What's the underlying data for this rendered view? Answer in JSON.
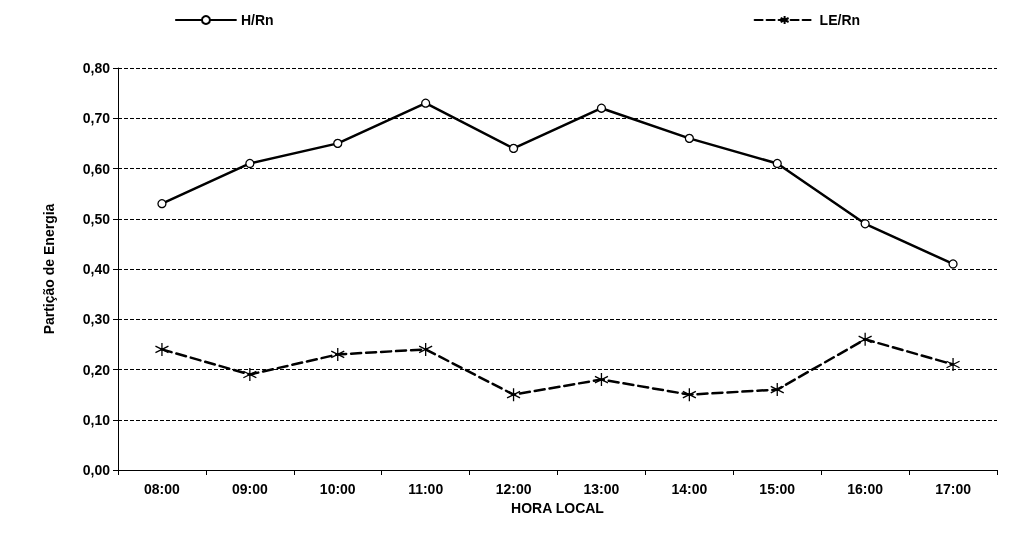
{
  "chart_data": {
    "type": "line",
    "xlabel": "HORA LOCAL",
    "ylabel": "Partição de Energia",
    "categories": [
      "08:00",
      "09:00",
      "10:00",
      "11:00",
      "12:00",
      "13:00",
      "14:00",
      "15:00",
      "16:00",
      "17:00"
    ],
    "series": [
      {
        "name": "H/Rn",
        "color": "#000000",
        "marker": "circle",
        "line_style": "solid",
        "values": [
          0.53,
          0.61,
          0.65,
          0.73,
          0.64,
          0.72,
          0.66,
          0.61,
          0.49,
          0.41
        ]
      },
      {
        "name": "LE/Rn",
        "color": "#000000",
        "marker": "cross",
        "line_style": "dashed",
        "values": [
          0.24,
          0.19,
          0.23,
          0.24,
          0.15,
          0.18,
          0.15,
          0.16,
          0.26,
          0.21
        ]
      }
    ],
    "ylim": [
      0,
      0.8
    ],
    "yticks": [
      {
        "value": 0,
        "label": "0,00"
      },
      {
        "value": 0.1,
        "label": "0,10"
      },
      {
        "value": 0.2,
        "label": "0,20"
      },
      {
        "value": 0.3,
        "label": "0,30"
      },
      {
        "value": 0.4,
        "label": "0,40"
      },
      {
        "value": 0.5,
        "label": "0,50"
      },
      {
        "value": 0.6,
        "label": "0,60"
      },
      {
        "value": 0.7,
        "label": "0,70"
      },
      {
        "value": 0.8,
        "label": "0,80"
      }
    ],
    "grid": "y",
    "legend": "top"
  }
}
